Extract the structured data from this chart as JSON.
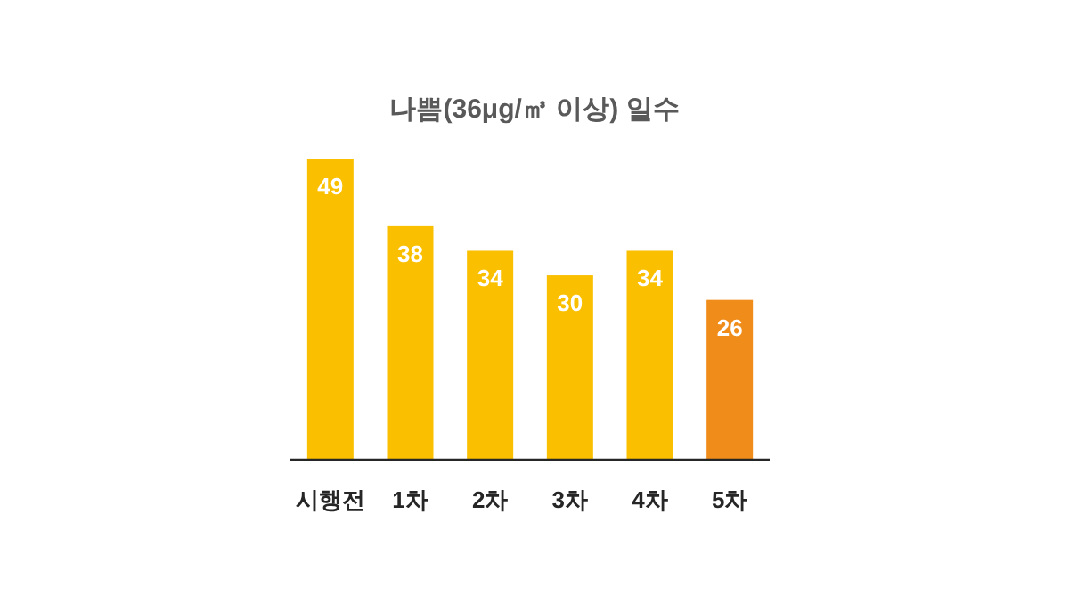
{
  "chart_data": {
    "type": "bar",
    "title": "나쁨(36μg/㎥ 이상) 일수",
    "categories": [
      "시행전",
      "1차",
      "2차",
      "3차",
      "4차",
      "5차"
    ],
    "values": [
      49,
      38,
      34,
      30,
      34,
      26
    ],
    "colors": [
      "#fac000",
      "#fac000",
      "#fac000",
      "#fac000",
      "#fac000",
      "#f08c1a"
    ],
    "data_labels": true
  }
}
